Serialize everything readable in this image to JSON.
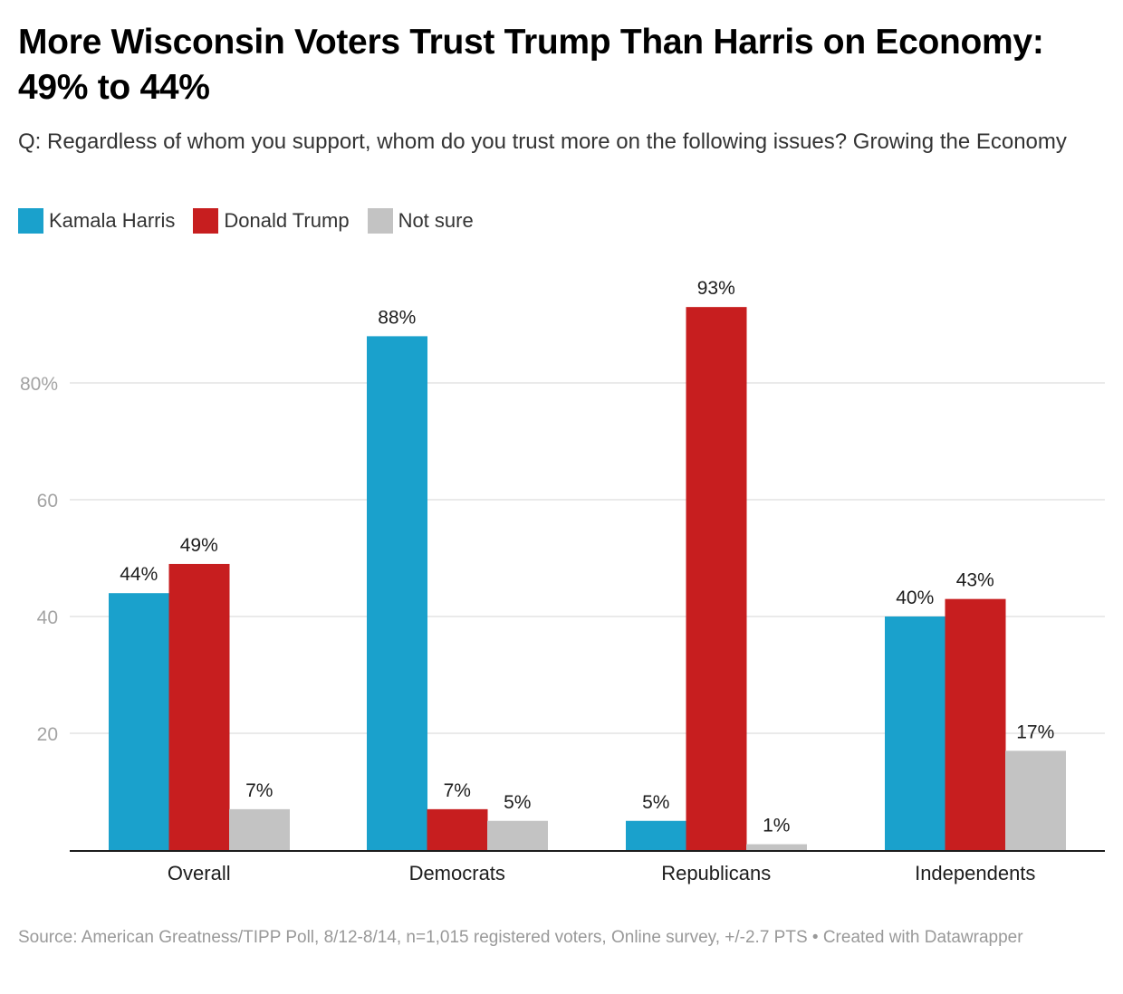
{
  "header": {
    "title": "More Wisconsin Voters Trust Trump Than Harris on Economy: 49% to 44%",
    "subtitle": "Q: Regardless of whom you support, whom do you trust more on the following issues? Growing the Economy"
  },
  "legend": [
    {
      "label": "Kamala Harris",
      "color": "#1aa1cc"
    },
    {
      "label": "Donald Trump",
      "color": "#c71e1f"
    },
    {
      "label": "Not sure",
      "color": "#c3c3c3"
    }
  ],
  "footer": {
    "source": "Source: American Greatness/TIPP Poll, 8/12-8/14, n=1,015 registered voters, Online survey, +/-2.7 PTS • Created with Datawrapper"
  },
  "chart_data": {
    "type": "bar",
    "title": "More Wisconsin Voters Trust Trump Than Harris on Economy: 49% to 44%",
    "xlabel": "",
    "ylabel": "",
    "categories": [
      "Overall",
      "Democrats",
      "Republicans",
      "Independents"
    ],
    "series": [
      {
        "name": "Kamala Harris",
        "color": "#1aa1cc",
        "values": [
          44,
          88,
          5,
          40
        ]
      },
      {
        "name": "Donald Trump",
        "color": "#c71e1f",
        "values": [
          49,
          7,
          93,
          43
        ]
      },
      {
        "name": "Not sure",
        "color": "#c3c3c3",
        "values": [
          7,
          5,
          1,
          17
        ]
      }
    ],
    "value_suffix": "%",
    "ylim": [
      0,
      93
    ],
    "yticks": [
      20,
      40,
      60,
      80
    ],
    "ytick_labels": [
      "20",
      "40",
      "60",
      "80%"
    ],
    "grid": true,
    "legend_position": "top-left"
  }
}
